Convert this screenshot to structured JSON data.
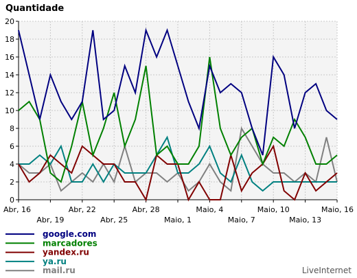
{
  "chart_data": {
    "type": "line",
    "ylabel": "Quantidade",
    "ylim": [
      0,
      20
    ],
    "yticks": [
      0,
      2,
      4,
      6,
      8,
      10,
      12,
      14,
      16,
      18,
      20
    ],
    "grid": true,
    "legend_position": "bottom-left",
    "x_categories": [
      "Abr, 16",
      "Abr, 17",
      "Abr, 18",
      "Abr, 19",
      "Abr, 20",
      "Abr, 21",
      "Abr, 22",
      "Abr, 23",
      "Abr, 24",
      "Abr, 25",
      "Abr, 26",
      "Abr, 27",
      "Abr, 28",
      "Abr, 29",
      "Abr, 30",
      "Maio, 1",
      "Maio, 2",
      "Maio, 3",
      "Maio, 4",
      "Maio, 5",
      "Maio, 6",
      "Maio, 7",
      "Maio, 8",
      "Maio, 9",
      "Maio, 10",
      "Maio, 11",
      "Maio, 12",
      "Maio, 13",
      "Maio, 14",
      "Maio, 15",
      "Maio, 16"
    ],
    "x_tick_labels": [
      {
        "index": 0,
        "label": "Abr, 16",
        "row": 0
      },
      {
        "index": 3,
        "label": "Abr, 19",
        "row": 1
      },
      {
        "index": 6,
        "label": "Abr, 22",
        "row": 0
      },
      {
        "index": 9,
        "label": "Abr, 25",
        "row": 1
      },
      {
        "index": 12,
        "label": "Abr, 28",
        "row": 0
      },
      {
        "index": 15,
        "label": "Maio, 1",
        "row": 1
      },
      {
        "index": 18,
        "label": "Maio, 4",
        "row": 0
      },
      {
        "index": 21,
        "label": "Maio, 7",
        "row": 1
      },
      {
        "index": 24,
        "label": "Maio, 10",
        "row": 0
      },
      {
        "index": 27,
        "label": "Maio, 13",
        "row": 1
      },
      {
        "index": 30,
        "label": "Maio, 16",
        "row": 0
      }
    ],
    "series": [
      {
        "name": "google.com",
        "color": "#000080",
        "values": [
          19,
          14,
          9,
          14,
          11,
          9,
          11,
          19,
          9,
          10,
          15,
          12,
          19,
          16,
          19,
          15,
          11,
          8,
          15,
          12,
          13,
          12,
          8,
          5,
          16,
          14,
          8,
          12,
          13,
          10,
          9
        ]
      },
      {
        "name": "marcadores",
        "color": "#008000",
        "values": [
          10,
          11,
          9,
          3,
          2,
          6,
          11,
          5,
          8,
          12,
          6,
          9,
          15,
          5,
          6,
          4,
          4,
          6,
          16,
          8,
          5,
          7,
          8,
          4,
          7,
          6,
          9,
          7,
          4,
          4,
          5
        ]
      },
      {
        "name": "yandex.ru",
        "color": "#800000",
        "values": [
          4,
          2,
          3,
          5,
          4,
          3,
          6,
          5,
          4,
          4,
          2,
          2,
          0,
          5,
          4,
          4,
          0,
          2,
          0,
          0,
          5,
          1,
          3,
          4,
          6,
          1,
          0,
          3,
          1,
          2,
          3
        ]
      },
      {
        "name": "ya.ru",
        "color": "#008080",
        "values": [
          4,
          4,
          5,
          4,
          6,
          2,
          2,
          4,
          2,
          4,
          3,
          3,
          3,
          5,
          7,
          3,
          3,
          4,
          6,
          3,
          2,
          5,
          2,
          1,
          2,
          2,
          2,
          2,
          2,
          2,
          2
        ]
      },
      {
        "name": "mail.ru",
        "color": "#808080",
        "values": [
          4,
          3,
          3,
          4,
          1,
          2,
          3,
          2,
          4,
          2,
          6,
          2,
          3,
          3,
          2,
          3,
          1,
          2,
          4,
          2,
          1,
          8,
          6,
          4,
          3,
          3,
          2,
          3,
          2,
          7,
          2
        ]
      }
    ]
  },
  "footer": {
    "brand": "LiveInternet"
  }
}
